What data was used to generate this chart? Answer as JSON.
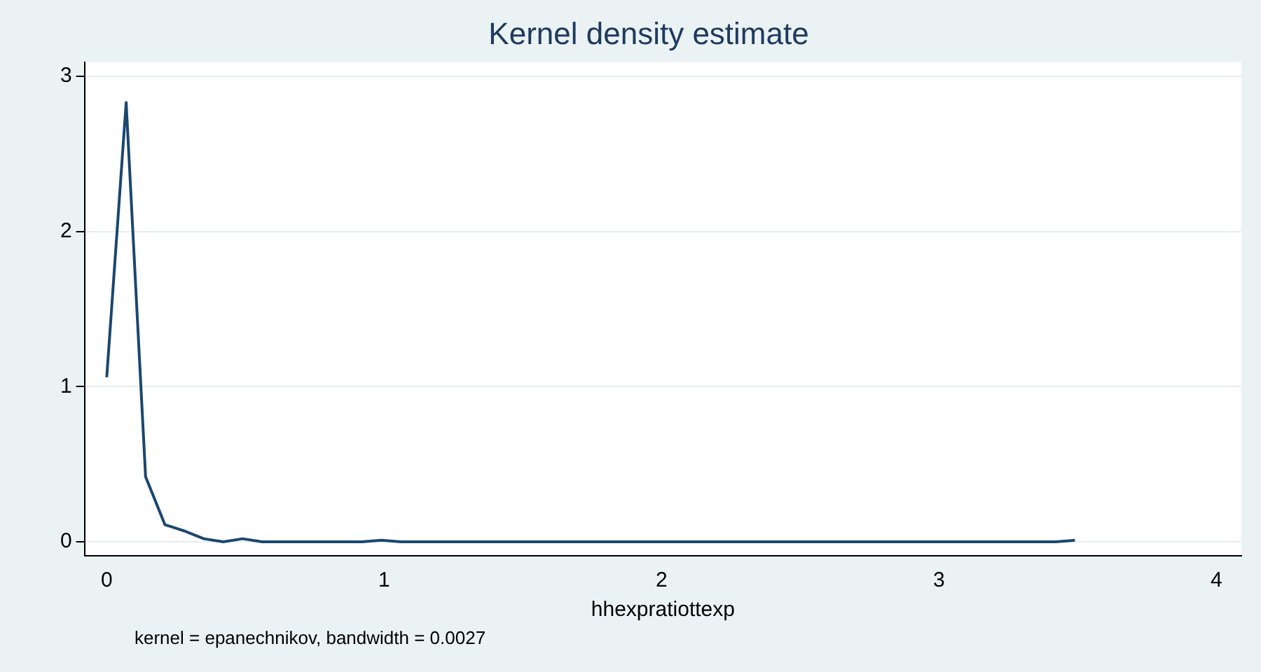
{
  "chart_data": {
    "type": "line",
    "title": "Kernel density estimate",
    "xlabel": "hhexpratiottexp",
    "annotations": [
      "kernel = epanechnikov, bandwidth = 0.0027"
    ],
    "series": [
      {
        "color": "#1a476f",
        "x": [
          0,
          0.07,
          0.14,
          0.21,
          0.28,
          0.35,
          0.42,
          0.49,
          0.56,
          0.63,
          0.92,
          0.99,
          1.06,
          2.0,
          3.0,
          3.42,
          3.49
        ],
        "values": [
          1.06,
          2.83,
          0.42,
          0.11,
          0.07,
          0.02,
          0,
          0.02,
          0,
          0,
          0,
          0.01,
          0,
          0,
          0,
          0,
          0.01
        ]
      }
    ],
    "xlim": [
      -0.08,
      4.09
    ],
    "xticks": [
      0,
      1,
      2,
      3,
      4
    ],
    "ylim": [
      -0.09,
      3.09
    ],
    "yticks": [
      0,
      1,
      2,
      3
    ],
    "grid": "y",
    "legend": false,
    "marker": "none",
    "line_style": "solid"
  }
}
